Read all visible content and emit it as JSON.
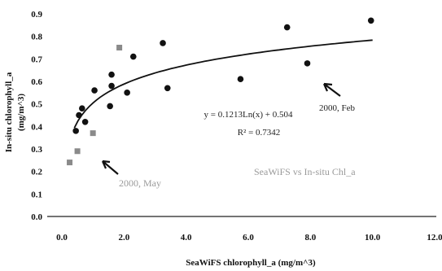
{
  "chart_data": {
    "type": "scatter",
    "title": "",
    "xlabel": "SeaWiFS chlorophyll_a (mg/m^3)",
    "ylabel_line1": "In-situ chlorophyll_a",
    "ylabel_line2": "(mg/m^3)",
    "xlim": [
      0,
      12
    ],
    "ylim": [
      0,
      0.9
    ],
    "x_ticks": [
      "0.0",
      "2.0",
      "4.0",
      "6.0",
      "8.0",
      "10.0",
      "12.0"
    ],
    "y_ticks": [
      "0.0",
      "0.1",
      "0.2",
      "0.3",
      "0.4",
      "0.5",
      "0.6",
      "0.7",
      "0.8",
      "0.9"
    ],
    "grid": false,
    "series": [
      {
        "marker": "black-dot",
        "points": [
          [
            0.45,
            0.38
          ],
          [
            0.55,
            0.45
          ],
          [
            0.65,
            0.48
          ],
          [
            0.75,
            0.42
          ],
          [
            1.05,
            0.56
          ],
          [
            1.55,
            0.49
          ],
          [
            1.6,
            0.58
          ],
          [
            1.6,
            0.63
          ],
          [
            2.1,
            0.55
          ],
          [
            2.3,
            0.71
          ],
          [
            3.25,
            0.77
          ],
          [
            3.4,
            0.57
          ],
          [
            5.75,
            0.61
          ],
          [
            7.25,
            0.84
          ],
          [
            7.9,
            0.68
          ],
          [
            9.95,
            0.87
          ]
        ]
      },
      {
        "marker": "gray-square",
        "points": [
          [
            0.25,
            0.24
          ],
          [
            0.5,
            0.29
          ],
          [
            1.0,
            0.37
          ],
          [
            1.85,
            0.75
          ]
        ]
      }
    ],
    "trendline": {
      "a": 0.1213,
      "b": 0.504,
      "x_from": 0.4,
      "x_to": 10.0
    },
    "equation_text": "y = 0.1213Ln(x) + 0.504",
    "r2_text": "R² = 0.7342",
    "annotations": {
      "feb": "2000, Feb",
      "may": "2000, May",
      "legend_like": "SeaWiFS vs In-situ Chl_a"
    },
    "colors": {
      "points": "#111111",
      "squares": "#8a8a8a",
      "line": "#111111"
    }
  }
}
